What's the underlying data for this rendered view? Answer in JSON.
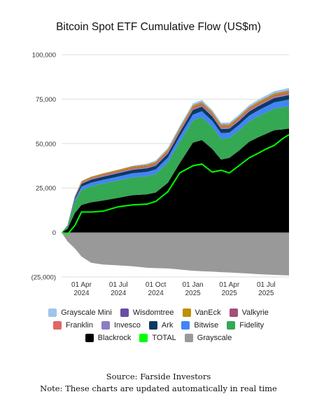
{
  "chart_data": {
    "type": "area",
    "title": "Bitcoin Spot ETF Cumulative Flow (US$m)",
    "y_ticks": [
      "100,000",
      "75,000",
      "50,000",
      "25,000",
      "0",
      "(25,000)"
    ],
    "ylim": [
      -25000,
      100000
    ],
    "x_ticks": [
      {
        "label": "01 Apr",
        "year": "2024",
        "x": 0.135
      },
      {
        "label": "01 Jul",
        "year": "2024",
        "x": 0.385
      },
      {
        "label": "01 Oct",
        "year": "2024",
        "x": 0.638
      },
      {
        "label": "01 Jan",
        "year": "2025",
        "x": 0.889
      },
      {
        "label": "01 Apr",
        "year": "2025",
        "x": 1.136
      },
      {
        "label": "01 Jul",
        "year": "2025",
        "x": 1.385
      }
    ],
    "x_range": [
      0,
      1.54
    ],
    "grid": true,
    "legend_position": "bottom",
    "x": [
      0,
      0.04,
      0.09,
      0.135,
      0.2,
      0.28,
      0.385,
      0.48,
      0.58,
      0.638,
      0.72,
      0.8,
      0.889,
      0.95,
      1.02,
      1.08,
      1.136,
      1.2,
      1.27,
      1.33,
      1.385,
      1.44,
      1.5,
      1.54
    ],
    "series": [
      {
        "name": "Blackrock",
        "color": "#000000",
        "values": [
          0,
          2000,
          11000,
          15500,
          17000,
          18000,
          19500,
          21000,
          21500,
          22500,
          28000,
          39000,
          50500,
          52000,
          47000,
          41000,
          42000,
          46000,
          51000,
          53500,
          55500,
          57500,
          58000,
          58500
        ]
      },
      {
        "name": "Fidelity",
        "color": "#34a853",
        "values": [
          0,
          1500,
          6500,
          8500,
          9000,
          9500,
          9800,
          10000,
          10200,
          10500,
          11500,
          12000,
          12500,
          12800,
          12500,
          11800,
          11200,
          11300,
          11500,
          11800,
          12000,
          12200,
          12500,
          12600
        ]
      },
      {
        "name": "Bitwise",
        "color": "#4285f4",
        "values": [
          0,
          200,
          1200,
          1800,
          2000,
          2100,
          2200,
          2300,
          2400,
          2500,
          2700,
          3000,
          3300,
          3400,
          3300,
          3100,
          3000,
          3100,
          3200,
          3300,
          3400,
          3500,
          3600,
          3700
        ]
      },
      {
        "name": "Ark",
        "color": "#0b3a63",
        "values": [
          0,
          200,
          1000,
          1600,
          1700,
          1800,
          1900,
          1950,
          2000,
          2100,
          2200,
          2400,
          2600,
          2600,
          2500,
          2300,
          2200,
          2250,
          2300,
          2350,
          2400,
          2450,
          2500,
          2550
        ]
      },
      {
        "name": "Invesco",
        "color": "#8e7cc3",
        "values": [
          0,
          50,
          200,
          300,
          320,
          330,
          340,
          350,
          360,
          370,
          380,
          390,
          400,
          400,
          390,
          380,
          370,
          375,
          380,
          385,
          390,
          395,
          400,
          400
        ]
      },
      {
        "name": "Franklin",
        "color": "#e06666",
        "values": [
          0,
          40,
          150,
          250,
          280,
          300,
          320,
          340,
          360,
          380,
          400,
          420,
          450,
          460,
          450,
          440,
          430,
          440,
          450,
          460,
          470,
          480,
          490,
          500
        ]
      },
      {
        "name": "Valkyrie",
        "color": "#a64d79",
        "values": [
          0,
          30,
          150,
          300,
          350,
          380,
          400,
          420,
          440,
          460,
          480,
          500,
          520,
          520,
          510,
          500,
          490,
          495,
          500,
          505,
          510,
          515,
          520,
          525
        ]
      },
      {
        "name": "VanEck",
        "color": "#bf9000",
        "values": [
          0,
          50,
          300,
          600,
          650,
          700,
          750,
          800,
          850,
          900,
          950,
          1000,
          1050,
          1060,
          1040,
          1020,
          1000,
          1010,
          1020,
          1030,
          1040,
          1050,
          1060,
          1070
        ]
      },
      {
        "name": "Wisdomtree",
        "color": "#674ea7",
        "values": [
          0,
          10,
          40,
          80,
          90,
          100,
          110,
          120,
          130,
          140,
          150,
          160,
          170,
          170,
          165,
          160,
          155,
          158,
          160,
          162,
          164,
          166,
          168,
          170
        ]
      },
      {
        "name": "Grayscale Mini",
        "color": "#9fc5e8",
        "values": [
          0,
          0,
          0,
          0,
          0,
          0,
          0,
          200,
          500,
          700,
          900,
          1000,
          1100,
          1150,
          1100,
          1050,
          1000,
          1050,
          1100,
          1150,
          1200,
          1250,
          1300,
          1350
        ]
      },
      {
        "name": "Grayscale",
        "color": "#999999",
        "values": [
          0,
          -5000,
          -9000,
          -13500,
          -17000,
          -18000,
          -18500,
          -19000,
          -19800,
          -20000,
          -20200,
          -20800,
          -21500,
          -21800,
          -22000,
          -22300,
          -22500,
          -22800,
          -23100,
          -23400,
          -23600,
          -23800,
          -24000,
          -24100
        ]
      },
      {
        "name": "TOTAL",
        "color": "#00ff00",
        "values": [
          0,
          -1000,
          4000,
          11500,
          11500,
          12000,
          14500,
          15500,
          16000,
          17500,
          23000,
          33500,
          37500,
          38500,
          34000,
          35000,
          33500,
          37500,
          42000,
          44500,
          47000,
          49000,
          53000,
          55000
        ]
      }
    ]
  },
  "legend": {
    "rows": [
      [
        {
          "label": "Grayscale Mini",
          "color": "#9fc5e8"
        },
        {
          "label": "Wisdomtree",
          "color": "#674ea7"
        },
        {
          "label": "VanEck",
          "color": "#bf9000"
        },
        {
          "label": "Valkyrie",
          "color": "#a64d79"
        }
      ],
      [
        {
          "label": "Franklin",
          "color": "#e06666"
        },
        {
          "label": "Invesco",
          "color": "#8e7cc3"
        },
        {
          "label": "Ark",
          "color": "#0b3a63"
        },
        {
          "label": "Bitwise",
          "color": "#4285f4"
        },
        {
          "label": "Fidelity",
          "color": "#34a853"
        }
      ],
      [
        {
          "label": "Blackrock",
          "color": "#000000"
        },
        {
          "label": "TOTAL",
          "color": "#00ff00"
        },
        {
          "label": "Grayscale",
          "color": "#999999"
        }
      ]
    ]
  },
  "footer": {
    "source": "Source: Farside Investors",
    "note": "Note: These charts are updated automatically in real time"
  }
}
